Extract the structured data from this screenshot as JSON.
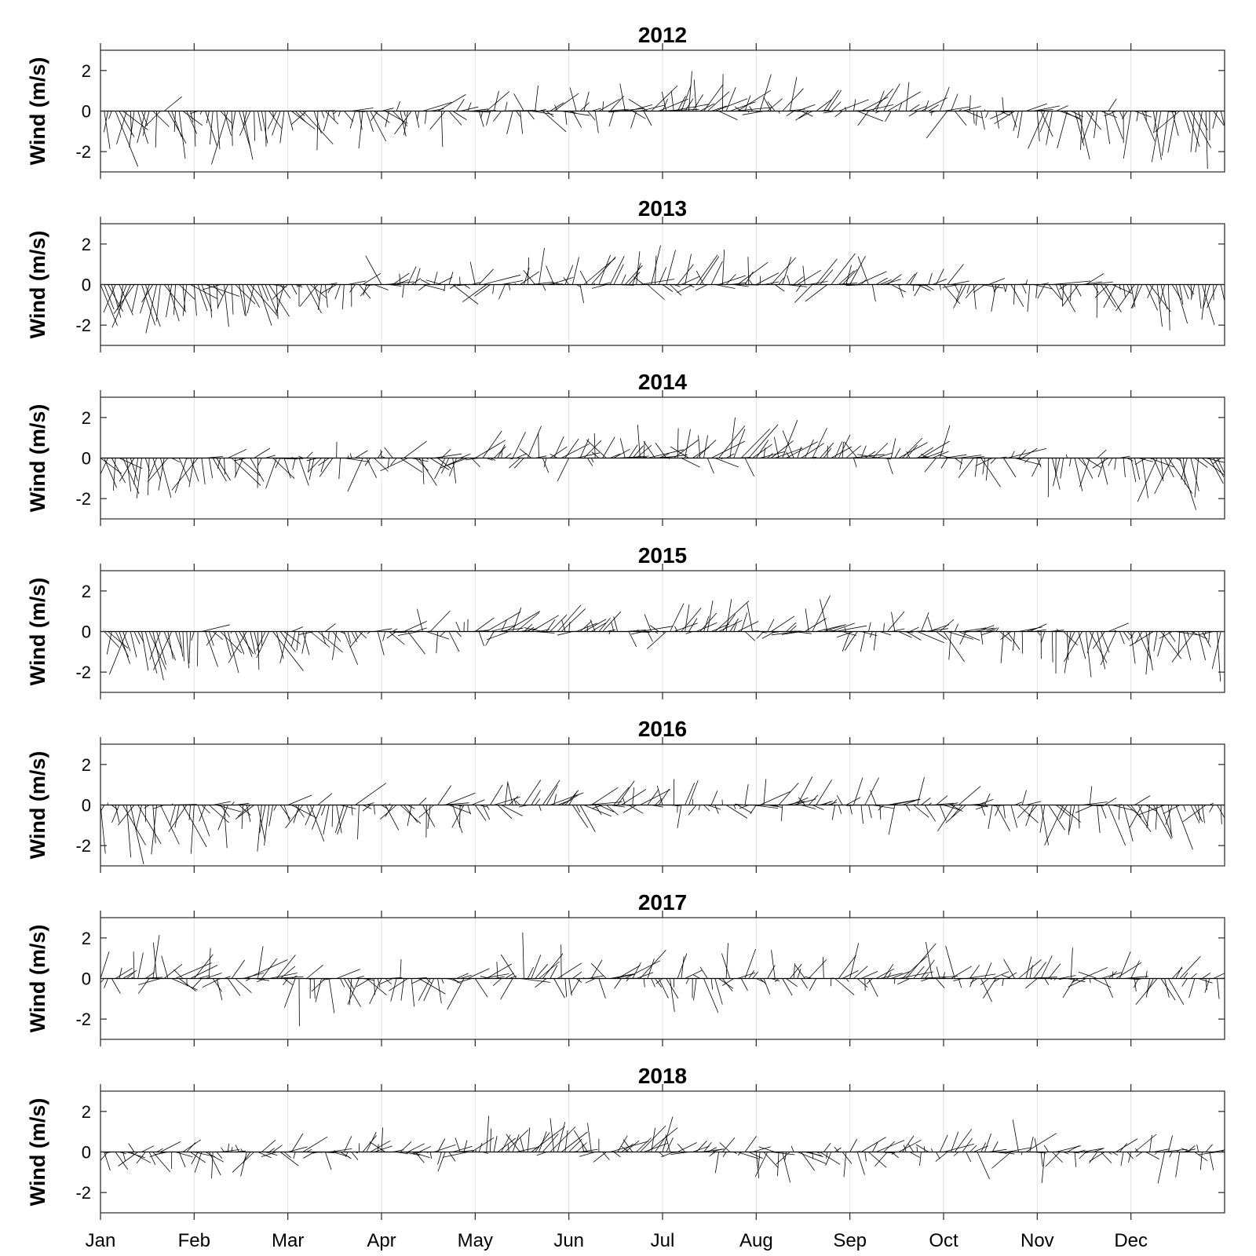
{
  "chart_data": {
    "type": "quiver",
    "description_units": "stick plot of wind vectors, one stick per time step",
    "ylabel": "Wind (m/s)",
    "ylim": [
      -3,
      3
    ],
    "yticks": [
      2,
      0,
      -2
    ],
    "ytick_labels": [
      "2",
      "0",
      "-2"
    ],
    "months": [
      "Jan",
      "Feb",
      "Mar",
      "Apr",
      "May",
      "Jun",
      "Jul",
      "Aug",
      "Sep",
      "Oct",
      "Nov",
      "Dec"
    ],
    "grid": "vertical month lines",
    "stick_color": "#000000",
    "panels": [
      {
        "title": "2012",
        "monthly_mean_v": [
          -1.2,
          -1.1,
          -0.4,
          -0.3,
          0.1,
          0.3,
          0.5,
          0.6,
          0.2,
          -0.2,
          -0.9,
          -1.3
        ],
        "spread": 1.0
      },
      {
        "title": "2013",
        "monthly_mean_v": [
          -1.3,
          -1.1,
          -0.2,
          0.1,
          0.3,
          0.4,
          0.5,
          0.6,
          0.3,
          -0.3,
          -0.9,
          -1.2
        ],
        "spread": 0.9
      },
      {
        "title": "2014",
        "monthly_mean_v": [
          -1.2,
          -0.7,
          -0.6,
          -0.3,
          0.2,
          0.4,
          0.6,
          0.6,
          0.3,
          -0.3,
          -0.8,
          -1.1
        ],
        "spread": 0.9
      },
      {
        "title": "2015",
        "monthly_mean_v": [
          -1.4,
          -1.1,
          -0.5,
          -0.1,
          0.3,
          0.2,
          0.5,
          0.5,
          0.0,
          -0.4,
          -1.1,
          -1.2
        ],
        "spread": 0.9
      },
      {
        "title": "2016",
        "monthly_mean_v": [
          -1.1,
          -1.0,
          -0.5,
          -0.4,
          0.2,
          0.4,
          0.4,
          0.4,
          -0.1,
          -0.4,
          -0.9,
          -0.9
        ],
        "spread": 1.0
      },
      {
        "title": "2017",
        "monthly_mean_v": [
          0.5,
          0.2,
          -0.6,
          -0.4,
          0.5,
          0.2,
          0.1,
          0.2,
          0.3,
          0.0,
          0.1,
          -0.1
        ],
        "spread": 1.0
      },
      {
        "title": "2018",
        "monthly_mean_v": [
          -0.1,
          -0.1,
          0.3,
          0.2,
          0.7,
          0.6,
          0.1,
          -0.5,
          0.1,
          0.1,
          -0.2,
          0.0
        ],
        "spread": 0.8
      }
    ]
  }
}
